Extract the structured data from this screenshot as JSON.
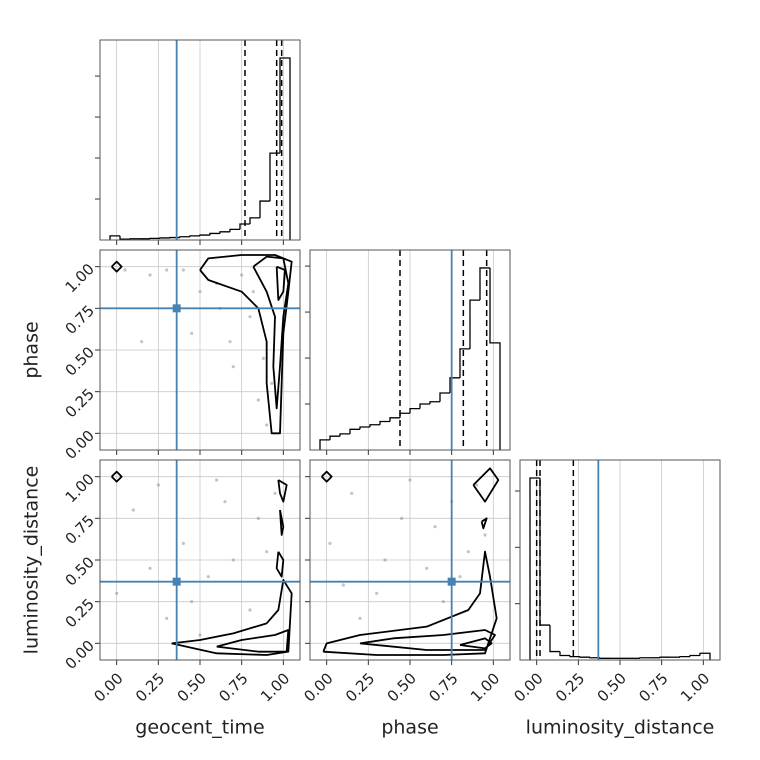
{
  "chart_data": {
    "type": "corner",
    "labels": [
      "geocent_time",
      "phase",
      "luminosity_distance"
    ],
    "xlim": [
      -0.1,
      1.1
    ],
    "ylim": [
      -0.1,
      1.1
    ],
    "xticks": [
      {
        "value": 0,
        "label": "0.00"
      },
      {
        "value": 0.25,
        "label": "0.25"
      },
      {
        "value": 0.5,
        "label": "0.50"
      },
      {
        "value": 0.75,
        "label": "0.75"
      },
      {
        "value": 1,
        "label": "1.00"
      }
    ],
    "yticks": [
      {
        "value": 0,
        "label": "0.00"
      },
      {
        "value": 0.25,
        "label": "0.25"
      },
      {
        "value": 0.5,
        "label": "0.50"
      },
      {
        "value": 0.75,
        "label": "0.75"
      },
      {
        "value": 1,
        "label": "1.00"
      }
    ],
    "grid": true,
    "truths": [
      0.36,
      0.75,
      0.37
    ],
    "truth_color": "#4682b4",
    "histograms": [
      {
        "bins": [
          -0.04,
          0.02,
          0.08,
          0.14,
          0.2,
          0.26,
          0.32,
          0.38,
          0.44,
          0.5,
          0.56,
          0.62,
          0.68,
          0.74,
          0.8,
          0.86,
          0.92,
          0.98,
          1.04
        ],
        "values": [
          0.1,
          0.02,
          0.03,
          0.03,
          0.04,
          0.05,
          0.06,
          0.08,
          0.1,
          0.12,
          0.16,
          0.2,
          0.26,
          0.39,
          0.54,
          0.95,
          2.12,
          4.44
        ],
        "quantiles": [
          0.77,
          0.96,
          0.99
        ],
        "ylim": [
          0,
          4.88
        ],
        "yticks": [
          1,
          2,
          3,
          4
        ]
      },
      {
        "bins": [
          -0.04,
          0.02,
          0.08,
          0.14,
          0.2,
          0.26,
          0.32,
          0.38,
          0.44,
          0.5,
          0.56,
          0.62,
          0.68,
          0.74,
          0.8,
          0.86,
          0.92,
          0.98,
          1.04
        ],
        "values": [
          0.22,
          0.3,
          0.35,
          0.45,
          0.5,
          0.55,
          0.62,
          0.7,
          0.8,
          0.9,
          1.0,
          1.05,
          1.24,
          1.57,
          2.2,
          3.26,
          3.96,
          2.33
        ],
        "quantiles": [
          0.44,
          0.82,
          0.96
        ],
        "ylim": [
          0,
          4.35
        ],
        "yticks": [
          1,
          2,
          3,
          4
        ]
      },
      {
        "bins": [
          -0.04,
          0.02,
          0.08,
          0.14,
          0.2,
          0.26,
          0.32,
          0.38,
          0.44,
          0.5,
          0.56,
          0.62,
          0.68,
          0.74,
          0.8,
          0.86,
          0.92,
          0.98,
          1.04
        ],
        "values": [
          3.23,
          0.62,
          0.15,
          0.08,
          0.06,
          0.05,
          0.04,
          0.03,
          0.03,
          0.03,
          0.03,
          0.04,
          0.04,
          0.05,
          0.05,
          0.06,
          0.08,
          0.12
        ],
        "quantiles": [
          0.0,
          0.02,
          0.22
        ],
        "ylim": [
          0,
          3.55
        ],
        "yticks": [
          1,
          2,
          3
        ]
      }
    ],
    "panels": [
      {
        "col": 0,
        "row": 1,
        "scatter": {
          "x": [
            0.05,
            0.15,
            0.3,
            0.45,
            0.6,
            0.7,
            0.8,
            0.85,
            0.9,
            0.62,
            0.75,
            0.5,
            0.88,
            0.93,
            0.2,
            0.4,
            0.68,
            0.82
          ],
          "y": [
            0.98,
            0.55,
            0.98,
            0.6,
            0.9,
            0.4,
            0.7,
            0.2,
            0.05,
            0.75,
            0.95,
            0.85,
            0.45,
            0.3,
            0.95,
            0.98,
            0.55,
            0.85
          ]
        },
        "contours": [
          {
            "x": [
              0.5,
              0.55,
              0.75,
              0.95,
              1.05,
              1.03,
              1.0,
              0.99,
              0.98,
              0.93,
              0.9,
              0.9,
              0.85,
              0.75,
              0.55,
              0.5
            ],
            "y": [
              0.98,
              1.05,
              1.07,
              1.07,
              1.03,
              0.85,
              0.6,
              0.3,
              0.0,
              0.0,
              0.3,
              0.55,
              0.75,
              0.85,
              0.92,
              0.98
            ]
          },
          {
            "x": [
              0.82,
              0.9,
              1.0,
              1.03,
              1.0,
              0.98,
              0.96,
              0.94,
              0.95,
              0.9,
              0.82
            ],
            "y": [
              1.0,
              1.06,
              1.05,
              0.9,
              0.7,
              0.4,
              0.15,
              0.4,
              0.7,
              0.85,
              1.0
            ]
          },
          {
            "x": [
              0.96,
              1.01,
              1.0,
              0.97,
              0.96
            ],
            "y": [
              1.0,
              0.98,
              0.85,
              0.8,
              1.0
            ]
          },
          {
            "x": [
              -0.03,
              0.0,
              0.03,
              0.0,
              -0.03
            ],
            "y": [
              1.0,
              1.03,
              1.0,
              0.97,
              1.0
            ]
          }
        ]
      },
      {
        "col": 0,
        "row": 2,
        "scatter": {
          "x": [
            0.0,
            0.1,
            0.25,
            0.4,
            0.55,
            0.65,
            0.8,
            0.9,
            0.95,
            0.3,
            0.7,
            0.5,
            0.85,
            0.2,
            0.6,
            0.45
          ],
          "y": [
            0.3,
            0.8,
            0.95,
            0.6,
            0.4,
            0.85,
            0.2,
            0.55,
            0.9,
            0.15,
            0.5,
            0.05,
            0.75,
            0.45,
            0.98,
            0.25
          ]
        },
        "contours": [
          {
            "x": [
              0.33,
              0.6,
              0.9,
              1.03,
              1.05,
              1.0,
              0.97,
              0.9,
              0.7,
              0.5,
              0.33
            ],
            "y": [
              0.0,
              -0.06,
              -0.07,
              -0.05,
              0.3,
              0.38,
              0.2,
              0.12,
              0.06,
              0.02,
              0.0
            ]
          },
          {
            "x": [
              0.6,
              0.85,
              1.02,
              1.03,
              0.95,
              0.75,
              0.6
            ],
            "y": [
              -0.02,
              -0.05,
              -0.05,
              0.08,
              0.05,
              0.02,
              -0.02
            ]
          },
          {
            "x": [
              0.97,
              1.02,
              1.0,
              0.98,
              0.97
            ],
            "y": [
              0.98,
              0.95,
              0.85,
              0.9,
              0.98
            ]
          },
          {
            "x": [
              0.98,
              1.0,
              0.99,
              0.98
            ],
            "y": [
              0.8,
              0.7,
              0.65,
              0.8
            ]
          },
          {
            "x": [
              0.97,
              1.0,
              0.99,
              0.96,
              0.97
            ],
            "y": [
              0.55,
              0.5,
              0.4,
              0.45,
              0.55
            ]
          },
          {
            "x": [
              -0.03,
              0.0,
              0.03,
              0.0,
              -0.03
            ],
            "y": [
              1.0,
              1.03,
              1.0,
              0.97,
              1.0
            ]
          }
        ]
      },
      {
        "col": 1,
        "row": 2,
        "scatter": {
          "x": [
            0.02,
            0.15,
            0.3,
            0.45,
            0.6,
            0.75,
            0.85,
            0.9,
            0.2,
            0.5,
            0.7,
            0.95,
            0.35,
            0.65,
            0.1,
            0.8
          ],
          "y": [
            0.6,
            0.9,
            0.3,
            0.75,
            0.45,
            0.85,
            0.55,
            0.95,
            0.15,
            0.98,
            0.25,
            0.65,
            0.5,
            0.7,
            0.35,
            0.4
          ]
        },
        "contours": [
          {
            "x": [
              -0.02,
              0.3,
              0.7,
              0.95,
              1.02,
              0.98,
              0.95,
              0.92,
              0.85,
              0.6,
              0.2,
              0.0,
              -0.02
            ],
            "y": [
              -0.05,
              -0.07,
              -0.07,
              -0.06,
              0.15,
              0.4,
              0.55,
              0.3,
              0.2,
              0.1,
              0.05,
              0.0,
              -0.05
            ]
          },
          {
            "x": [
              0.2,
              0.6,
              0.95,
              1.01,
              0.95,
              0.7,
              0.4,
              0.2
            ],
            "y": [
              0.0,
              -0.04,
              -0.04,
              0.05,
              0.08,
              0.05,
              0.03,
              0.0
            ]
          },
          {
            "x": [
              0.8,
              0.95,
              0.99,
              0.95,
              0.8
            ],
            "y": [
              -0.01,
              -0.03,
              0.0,
              0.03,
              -0.01
            ]
          },
          {
            "x": [
              0.88,
              0.98,
              1.03,
              0.95,
              0.88
            ],
            "y": [
              0.95,
              1.05,
              0.98,
              0.85,
              0.95
            ]
          },
          {
            "x": [
              0.93,
              0.96,
              0.94,
              0.93
            ],
            "y": [
              0.73,
              0.75,
              0.69,
              0.73
            ]
          },
          {
            "x": [
              -0.03,
              0.0,
              0.03,
              0.0,
              -0.03
            ],
            "y": [
              1.0,
              1.03,
              1.0,
              0.97,
              1.0
            ]
          }
        ]
      }
    ]
  }
}
